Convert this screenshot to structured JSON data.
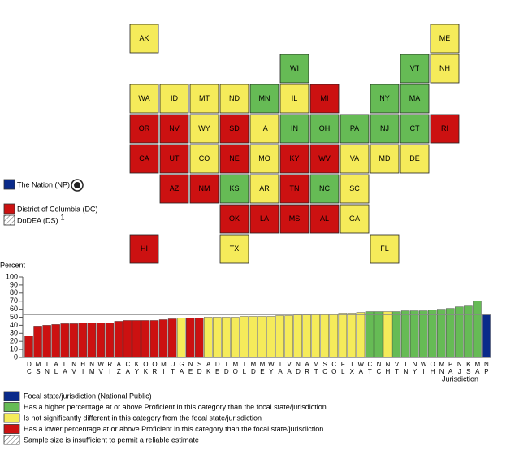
{
  "chart_data": [
    {
      "type": "map",
      "states": [
        {
          "label": "AK",
          "color": "#f5eb5a"
        },
        {
          "label": "ME",
          "color": "#f5eb5a"
        },
        {
          "label": "WI",
          "color": "#66bb55"
        },
        {
          "label": "VT",
          "color": "#66bb55"
        },
        {
          "label": "NH",
          "color": "#f5eb5a"
        },
        {
          "label": "WA",
          "color": "#f5eb5a"
        },
        {
          "label": "ID",
          "color": "#f5eb5a"
        },
        {
          "label": "MT",
          "color": "#f5eb5a"
        },
        {
          "label": "ND",
          "color": "#f5eb5a"
        },
        {
          "label": "MN",
          "color": "#66bb55"
        },
        {
          "label": "IL",
          "color": "#f5eb5a"
        },
        {
          "label": "MI",
          "color": "#cc1111"
        },
        {
          "label": "NY",
          "color": "#66bb55"
        },
        {
          "label": "MA",
          "color": "#66bb55"
        },
        {
          "label": "OR",
          "color": "#cc1111"
        },
        {
          "label": "NV",
          "color": "#cc1111"
        },
        {
          "label": "WY",
          "color": "#f5eb5a"
        },
        {
          "label": "SD",
          "color": "#cc1111"
        },
        {
          "label": "IA",
          "color": "#f5eb5a"
        },
        {
          "label": "IN",
          "color": "#66bb55"
        },
        {
          "label": "OH",
          "color": "#66bb55"
        },
        {
          "label": "PA",
          "color": "#66bb55"
        },
        {
          "label": "NJ",
          "color": "#66bb55"
        },
        {
          "label": "CT",
          "color": "#66bb55"
        },
        {
          "label": "RI",
          "color": "#cc1111"
        },
        {
          "label": "CA",
          "color": "#cc1111"
        },
        {
          "label": "UT",
          "color": "#cc1111"
        },
        {
          "label": "CO",
          "color": "#f5eb5a"
        },
        {
          "label": "NE",
          "color": "#cc1111"
        },
        {
          "label": "MO",
          "color": "#f5eb5a"
        },
        {
          "label": "KY",
          "color": "#cc1111"
        },
        {
          "label": "WV",
          "color": "#cc1111"
        },
        {
          "label": "VA",
          "color": "#f5eb5a"
        },
        {
          "label": "MD",
          "color": "#f5eb5a"
        },
        {
          "label": "DE",
          "color": "#f5eb5a"
        },
        {
          "label": "AZ",
          "color": "#cc1111"
        },
        {
          "label": "NM",
          "color": "#cc1111"
        },
        {
          "label": "KS",
          "color": "#66bb55"
        },
        {
          "label": "AR",
          "color": "#f5eb5a"
        },
        {
          "label": "TN",
          "color": "#cc1111"
        },
        {
          "label": "NC",
          "color": "#66bb55"
        },
        {
          "label": "SC",
          "color": "#f5eb5a"
        },
        {
          "label": "OK",
          "color": "#cc1111"
        },
        {
          "label": "LA",
          "color": "#cc1111"
        },
        {
          "label": "MS",
          "color": "#cc1111"
        },
        {
          "label": "AL",
          "color": "#cc1111"
        },
        {
          "label": "GA",
          "color": "#f5eb5a"
        },
        {
          "label": "HI",
          "color": "#cc1111"
        },
        {
          "label": "TX",
          "color": "#f5eb5a"
        },
        {
          "label": "FL",
          "color": "#f5eb5a"
        }
      ],
      "legend": [
        {
          "label": "The Nation (NP)",
          "color": "#0a2a8a"
        },
        {
          "label": "District of Columbia (DC)",
          "color": "#cc1111"
        },
        {
          "label": "DoDEA (DS)",
          "pattern": "hatch",
          "note": "1"
        }
      ]
    },
    {
      "type": "bar",
      "y_label": "Percent",
      "x_label": "Jurisdiction",
      "categories": [
        "DC",
        "MS",
        "TN",
        "AL",
        "LA",
        "NV",
        "HI",
        "NM",
        "WV",
        "RI",
        "AZ",
        "CA",
        "KY",
        "OK",
        "OR",
        "MI",
        "UT",
        "GA",
        "NE",
        "SD",
        "AK",
        "DE",
        "ID",
        "MO",
        "IL",
        "MD",
        "ME",
        "WY",
        "IA",
        "VA",
        "ND",
        "AR",
        "MT",
        "SC",
        "CO",
        "FL",
        "TX",
        "WA",
        "CT",
        "NC",
        "NH",
        "VT",
        "IN",
        "NY",
        "WI",
        "OH",
        "MN",
        "PA",
        "NJ",
        "KS",
        "MA",
        "NP"
      ],
      "values": [
        27,
        39,
        40,
        41,
        42,
        42,
        43,
        43,
        43,
        43,
        45,
        46,
        46,
        46,
        46,
        47,
        48,
        49,
        49,
        49,
        50,
        50,
        50,
        50,
        51,
        51,
        51,
        51,
        52,
        52,
        53,
        53,
        54,
        54,
        54,
        55,
        55,
        56,
        57,
        57,
        57,
        57,
        58,
        58,
        58,
        59,
        60,
        61,
        63,
        64,
        70,
        53
      ],
      "colors": [
        "#cc1111",
        "#cc1111",
        "#cc1111",
        "#cc1111",
        "#cc1111",
        "#cc1111",
        "#cc1111",
        "#cc1111",
        "#cc1111",
        "#cc1111",
        "#cc1111",
        "#cc1111",
        "#cc1111",
        "#cc1111",
        "#cc1111",
        "#cc1111",
        "#cc1111",
        "#f5eb5a",
        "#cc1111",
        "#cc1111",
        "#f5eb5a",
        "#f5eb5a",
        "#f5eb5a",
        "#f5eb5a",
        "#f5eb5a",
        "#f5eb5a",
        "#f5eb5a",
        "#f5eb5a",
        "#f5eb5a",
        "#f5eb5a",
        "#f5eb5a",
        "#f5eb5a",
        "#f5eb5a",
        "#f5eb5a",
        "#f5eb5a",
        "#f5eb5a",
        "#f5eb5a",
        "#f5eb5a",
        "#66bb55",
        "#66bb55",
        "#f5eb5a",
        "#66bb55",
        "#66bb55",
        "#66bb55",
        "#66bb55",
        "#66bb55",
        "#66bb55",
        "#66bb55",
        "#66bb55",
        "#66bb55",
        "#66bb55",
        "#0a2a8a"
      ],
      "reference_line": 53,
      "ylim": [
        0,
        100
      ],
      "yticks": [
        0,
        10,
        20,
        30,
        40,
        50,
        60,
        70,
        80,
        90,
        100
      ],
      "legend": [
        {
          "label": "Focal state/jurisdiction (National Public)",
          "color": "#0a2a8a"
        },
        {
          "label": "Has a higher percentage at or above Proficient in this category than the focal state/jurisdiction",
          "color": "#66bb55"
        },
        {
          "label": "Is not significantly different in this category from the focal state/jurisdiction",
          "color": "#f5eb5a"
        },
        {
          "label": "Has a lower percentage at or above Proficient in this category than the focal state/jurisdiction",
          "color": "#cc1111"
        },
        {
          "label": "Sample size is insufficient to permit a reliable estimate",
          "pattern": "hatch"
        }
      ]
    }
  ]
}
